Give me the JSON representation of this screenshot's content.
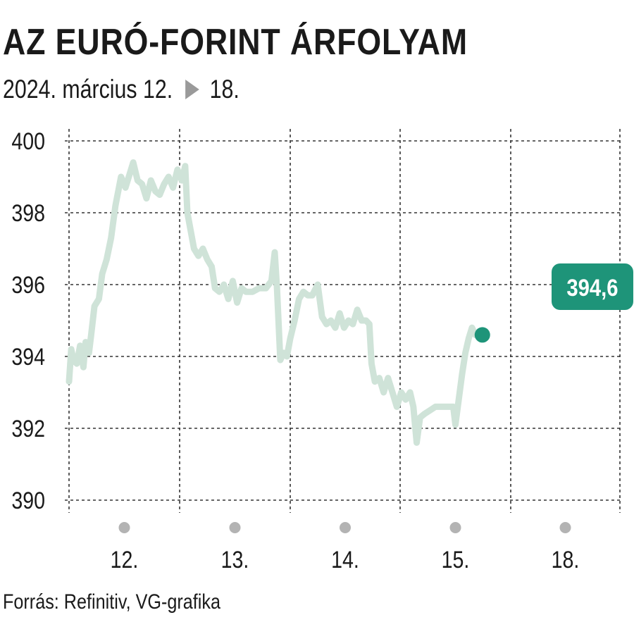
{
  "title": "AZ EURÓ-FORINT ÁRFOLYAM",
  "subtitle": {
    "start": "2024. március 12.",
    "end": "18."
  },
  "source": "Forrás: Refinitiv, VG-grafika",
  "colors": {
    "line": "#cfe3d8",
    "accent": "#1e9479",
    "grid": "#333333",
    "day_marker": "#b3b3b3",
    "arrow": "#9a9a9a"
  },
  "chart_data": {
    "type": "line",
    "title": "AZ EURÓ-FORINT ÁRFOLYAM",
    "xlabel": "",
    "ylabel": "",
    "ylim": [
      390,
      400
    ],
    "yticks": [
      "400",
      "398",
      "396",
      "394",
      "392",
      "390"
    ],
    "categories": [
      "12.",
      "13.",
      "14.",
      "15.",
      "18."
    ],
    "grid": true,
    "last_value_label": "394,6",
    "last_value": 394.6,
    "series": [
      {
        "values": [
          [
            0.0,
            393.3
          ],
          [
            0.02,
            394.2
          ],
          [
            0.04,
            393.9
          ],
          [
            0.07,
            393.8
          ],
          [
            0.1,
            394.3
          ],
          [
            0.13,
            393.7
          ],
          [
            0.15,
            394.4
          ],
          [
            0.18,
            394.1
          ],
          [
            0.2,
            394.6
          ],
          [
            0.23,
            395.4
          ],
          [
            0.27,
            395.6
          ],
          [
            0.3,
            396.3
          ],
          [
            0.34,
            396.7
          ],
          [
            0.38,
            397.3
          ],
          [
            0.42,
            398.2
          ],
          [
            0.47,
            399.0
          ],
          [
            0.51,
            398.7
          ],
          [
            0.55,
            399.1
          ],
          [
            0.58,
            399.4
          ],
          [
            0.62,
            398.9
          ],
          [
            0.66,
            398.8
          ],
          [
            0.7,
            398.4
          ],
          [
            0.74,
            398.9
          ],
          [
            0.78,
            398.6
          ],
          [
            0.82,
            398.5
          ],
          [
            0.86,
            398.8
          ],
          [
            0.9,
            399.0
          ],
          [
            0.94,
            398.7
          ],
          [
            0.98,
            399.2
          ],
          [
            1.02,
            398.9
          ],
          [
            1.05,
            399.3
          ],
          [
            1.07,
            398.0
          ],
          [
            1.1,
            397.5
          ],
          [
            1.13,
            397.0
          ],
          [
            1.17,
            396.8
          ],
          [
            1.21,
            397.0
          ],
          [
            1.25,
            396.7
          ],
          [
            1.29,
            396.5
          ],
          [
            1.32,
            395.9
          ],
          [
            1.36,
            395.8
          ],
          [
            1.4,
            396.0
          ],
          [
            1.44,
            395.6
          ],
          [
            1.48,
            396.1
          ],
          [
            1.52,
            395.5
          ],
          [
            1.56,
            395.9
          ],
          [
            1.6,
            395.8
          ],
          [
            1.66,
            395.8
          ],
          [
            1.72,
            395.9
          ],
          [
            1.78,
            395.9
          ],
          [
            1.83,
            396.1
          ],
          [
            1.86,
            396.9
          ],
          [
            1.88,
            395.9
          ],
          [
            1.91,
            393.9
          ],
          [
            1.94,
            394.1
          ],
          [
            1.97,
            394.0
          ],
          [
            2.0,
            394.5
          ],
          [
            2.04,
            395.0
          ],
          [
            2.08,
            395.6
          ],
          [
            2.12,
            395.8
          ],
          [
            2.16,
            395.7
          ],
          [
            2.2,
            395.7
          ],
          [
            2.25,
            396.0
          ],
          [
            2.29,
            395.1
          ],
          [
            2.33,
            394.9
          ],
          [
            2.37,
            395.0
          ],
          [
            2.41,
            394.8
          ],
          [
            2.45,
            395.2
          ],
          [
            2.49,
            394.8
          ],
          [
            2.53,
            395.0
          ],
          [
            2.57,
            394.9
          ],
          [
            2.61,
            395.3
          ],
          [
            2.65,
            395.0
          ],
          [
            2.69,
            395.0
          ],
          [
            2.72,
            394.9
          ],
          [
            2.74,
            393.8
          ],
          [
            2.77,
            393.3
          ],
          [
            2.81,
            393.4
          ],
          [
            2.85,
            393.0
          ],
          [
            2.89,
            393.4
          ],
          [
            2.93,
            393.0
          ],
          [
            2.97,
            392.6
          ],
          [
            3.01,
            393.0
          ],
          [
            3.05,
            392.8
          ],
          [
            3.09,
            393.0
          ],
          [
            3.12,
            392.6
          ],
          [
            3.15,
            391.6
          ],
          [
            3.18,
            392.3
          ],
          [
            3.22,
            392.4
          ],
          [
            3.27,
            392.5
          ],
          [
            3.32,
            392.6
          ],
          [
            3.38,
            392.6
          ],
          [
            3.44,
            392.6
          ],
          [
            3.48,
            392.6
          ],
          [
            3.5,
            392.1
          ],
          [
            3.53,
            392.8
          ],
          [
            3.56,
            393.5
          ],
          [
            3.59,
            394.1
          ],
          [
            3.62,
            394.5
          ],
          [
            3.65,
            394.8
          ],
          [
            3.68,
            394.6
          ]
        ]
      }
    ]
  }
}
